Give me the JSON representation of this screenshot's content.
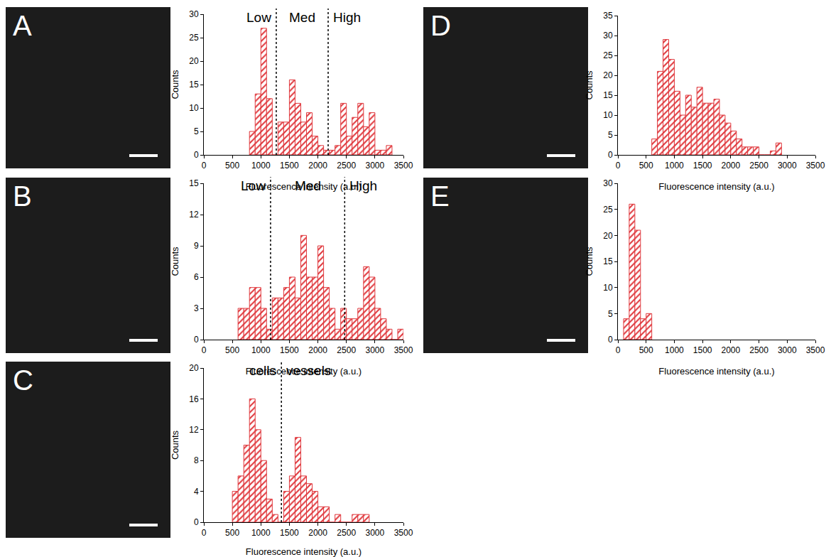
{
  "chart_data": [
    {
      "type": "histogram",
      "title": "A",
      "color": "#e0393e",
      "grid": false,
      "x_label": "Fluorescence intensity (a.u.)",
      "y_label": "Counts",
      "bins": [
        800,
        900,
        1000,
        1100,
        1200,
        1300,
        1400,
        1500,
        1600,
        1700,
        1800,
        1900,
        2000,
        2100,
        2200,
        2300,
        2400,
        2500,
        2600,
        2700,
        2800,
        2900,
        3000,
        3100,
        3200,
        3300
      ],
      "counts": [
        5,
        13,
        27,
        12,
        0,
        7,
        7,
        16,
        11,
        7,
        9,
        4,
        2,
        1,
        1,
        2,
        11,
        4,
        8,
        11,
        6,
        9,
        1,
        1,
        2
      ],
      "xlim": [
        0,
        3500
      ],
      "xticks": [
        0,
        500,
        1000,
        1500,
        2000,
        2500,
        3000,
        3500
      ],
      "ylim": [
        0,
        30
      ],
      "yticks": [
        0,
        5,
        10,
        15,
        20,
        25,
        30
      ],
      "dividers": [
        1270,
        2180
      ],
      "region_labels": [
        "Low",
        "Med",
        "High"
      ]
    },
    {
      "type": "histogram",
      "title": "B",
      "color": "#e0393e",
      "grid": false,
      "x_label": "Fluorescence intensity (a.u.)",
      "y_label": "Counts",
      "bins": [
        600,
        700,
        800,
        900,
        1000,
        1100,
        1200,
        1300,
        1400,
        1500,
        1600,
        1700,
        1800,
        1900,
        2000,
        2100,
        2200,
        2300,
        2400,
        2500,
        2600,
        2700,
        2800,
        2900,
        3000,
        3100,
        3200,
        3300,
        3400,
        3500
      ],
      "counts": [
        3,
        3,
        5,
        5,
        3,
        1,
        4,
        4,
        5,
        6,
        4,
        10,
        6,
        6,
        9,
        5,
        3,
        1,
        3,
        2,
        2,
        3,
        7,
        6,
        3,
        2,
        1,
        0,
        1
      ],
      "xlim": [
        0,
        3500
      ],
      "xticks": [
        0,
        500,
        1000,
        1500,
        2000,
        2500,
        3000,
        3500
      ],
      "ylim": [
        0,
        15
      ],
      "yticks": [
        0,
        3,
        6,
        9,
        12,
        15
      ],
      "dividers": [
        1170,
        2470
      ],
      "region_labels": [
        "Low",
        "Med",
        "High"
      ]
    },
    {
      "type": "histogram",
      "title": "C",
      "color": "#e0393e",
      "grid": false,
      "x_label": "Fluorescence intensity (a.u.)",
      "y_label": "Counts",
      "bins": [
        500,
        600,
        700,
        800,
        900,
        1000,
        1100,
        1200,
        1300,
        1400,
        1500,
        1600,
        1700,
        1800,
        1900,
        2000,
        2100,
        2200,
        2300,
        2400,
        2500,
        2600,
        2700,
        2800,
        2900
      ],
      "counts": [
        4,
        6,
        10,
        16,
        12,
        8,
        3,
        1,
        0,
        4,
        6,
        11,
        6,
        5,
        4,
        2,
        2,
        0,
        1,
        0,
        0,
        1,
        1,
        1
      ],
      "xlim": [
        0,
        3500
      ],
      "xticks": [
        0,
        500,
        1000,
        1500,
        2000,
        2500,
        3000,
        3500
      ],
      "ylim": [
        0,
        20
      ],
      "yticks": [
        0,
        4,
        8,
        12,
        16,
        20
      ],
      "dividers": [
        1360
      ],
      "region_labels": [
        "cells",
        "vessels"
      ]
    },
    {
      "type": "histogram",
      "title": "D",
      "color": "#e0393e",
      "grid": false,
      "x_label": "Fluorescence intensity (a.u.)",
      "y_label": "Counts",
      "bins": [
        600,
        700,
        800,
        900,
        1000,
        1100,
        1200,
        1300,
        1400,
        1500,
        1600,
        1700,
        1800,
        1900,
        2000,
        2100,
        2200,
        2300,
        2400,
        2500,
        2600,
        2700,
        2800,
        2900
      ],
      "counts": [
        4,
        21,
        29,
        24,
        16,
        10,
        15,
        12,
        17,
        13,
        13,
        14,
        10,
        8,
        6,
        4,
        2,
        2,
        2,
        0,
        0,
        1,
        3
      ],
      "xlim": [
        0,
        3500
      ],
      "xticks": [
        0,
        500,
        1000,
        1500,
        2000,
        2500,
        3000,
        3500
      ],
      "ylim": [
        0,
        35
      ],
      "yticks": [
        0,
        5,
        10,
        15,
        20,
        25,
        30,
        35
      ]
    },
    {
      "type": "histogram",
      "title": "E",
      "color": "#e0393e",
      "grid": false,
      "x_label": "Fluorescence intensity (a.u.)",
      "y_label": "Counts",
      "bins": [
        100,
        200,
        300,
        400,
        500,
        600
      ],
      "counts": [
        4,
        26,
        21,
        4,
        5
      ],
      "xlim": [
        0,
        3500
      ],
      "xticks": [
        0,
        500,
        1000,
        1500,
        2000,
        2500,
        3000,
        3500
      ],
      "ylim": [
        0,
        30
      ],
      "yticks": [
        0,
        5,
        10,
        15,
        20,
        25,
        30
      ]
    }
  ]
}
